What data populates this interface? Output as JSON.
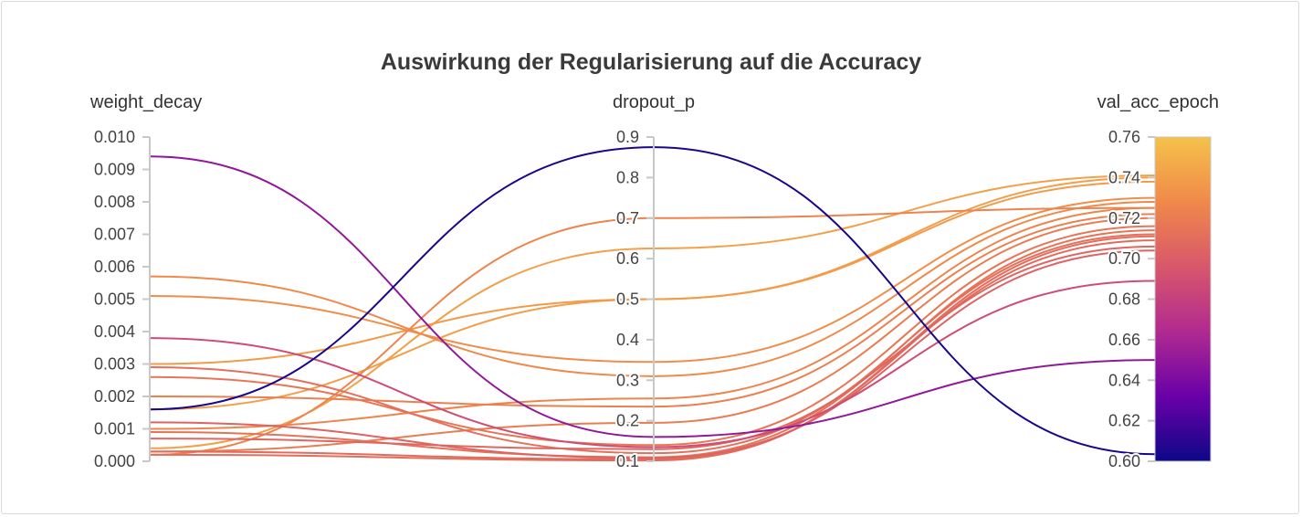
{
  "chart_data": {
    "type": "parallel-coordinates",
    "title": "Auswirkung der Regularisierung auf die Accuracy",
    "axes": [
      {
        "key": "weight_decay",
        "label": "weight_decay",
        "range": [
          0,
          0.01
        ],
        "ticks": [
          "0.000",
          "0.001",
          "0.002",
          "0.003",
          "0.004",
          "0.005",
          "0.006",
          "0.007",
          "0.008",
          "0.009",
          "0.010"
        ]
      },
      {
        "key": "dropout_p",
        "label": "dropout_p",
        "range": [
          0.1,
          0.9
        ],
        "ticks": [
          "0.1",
          "0.2",
          "0.3",
          "0.4",
          "0.5",
          "0.6",
          "0.7",
          "0.8",
          "0.9"
        ]
      },
      {
        "key": "val_acc_epoch",
        "label": "val_acc_epoch",
        "range": [
          0.6,
          0.76
        ],
        "ticks": [
          "0.60",
          "0.62",
          "0.64",
          "0.66",
          "0.68",
          "0.70",
          "0.72",
          "0.74",
          "0.76"
        ]
      }
    ],
    "colorscale": {
      "name": "plasma",
      "stops": [
        "#0d0887",
        "#5c01a6",
        "#9c179e",
        "#cc4778",
        "#ed7953",
        "#fdb42f",
        "#f0f921"
      ],
      "display_stops": [
        "#0d0887",
        "#6a00a8",
        "#b12a90",
        "#d8576b",
        "#f0894a",
        "#f5c24a"
      ],
      "range": [
        0.6,
        0.76
      ]
    },
    "runs": [
      {
        "weight_decay": 0.0016,
        "dropout_p": 0.875,
        "val_acc_epoch": 0.6035
      },
      {
        "weight_decay": 0.0094,
        "dropout_p": 0.16,
        "val_acc_epoch": 0.65
      },
      {
        "weight_decay": 0.0038,
        "dropout_p": 0.135,
        "val_acc_epoch": 0.689
      },
      {
        "weight_decay": 0.0016,
        "dropout_p": 0.5,
        "val_acc_epoch": 0.74
      },
      {
        "weight_decay": 0.003,
        "dropout_p": 0.5,
        "val_acc_epoch": 0.738
      },
      {
        "weight_decay": 0.0002,
        "dropout_p": 0.7,
        "val_acc_epoch": 0.725
      },
      {
        "weight_decay": 0.0004,
        "dropout_p": 0.625,
        "val_acc_epoch": 0.741
      },
      {
        "weight_decay": 0.0057,
        "dropout_p": 0.31,
        "val_acc_epoch": 0.728
      },
      {
        "weight_decay": 0.0051,
        "dropout_p": 0.345,
        "val_acc_epoch": 0.73
      },
      {
        "weight_decay": 0.001,
        "dropout_p": 0.255,
        "val_acc_epoch": 0.725
      },
      {
        "weight_decay": 0.002,
        "dropout_p": 0.235,
        "val_acc_epoch": 0.722
      },
      {
        "weight_decay": 0.0003,
        "dropout_p": 0.195,
        "val_acc_epoch": 0.72
      },
      {
        "weight_decay": 0.0026,
        "dropout_p": 0.14,
        "val_acc_epoch": 0.716
      },
      {
        "weight_decay": 0.0029,
        "dropout_p": 0.12,
        "val_acc_epoch": 0.712
      },
      {
        "weight_decay": 0.0009,
        "dropout_p": 0.11,
        "val_acc_epoch": 0.714
      },
      {
        "weight_decay": 0.0003,
        "dropout_p": 0.105,
        "val_acc_epoch": 0.709
      },
      {
        "weight_decay": 0.0007,
        "dropout_p": 0.13,
        "val_acc_epoch": 0.706
      },
      {
        "weight_decay": 0.0012,
        "dropout_p": 0.108,
        "val_acc_epoch": 0.704
      },
      {
        "weight_decay": 0.0002,
        "dropout_p": 0.102,
        "val_acc_epoch": 0.711
      }
    ]
  }
}
